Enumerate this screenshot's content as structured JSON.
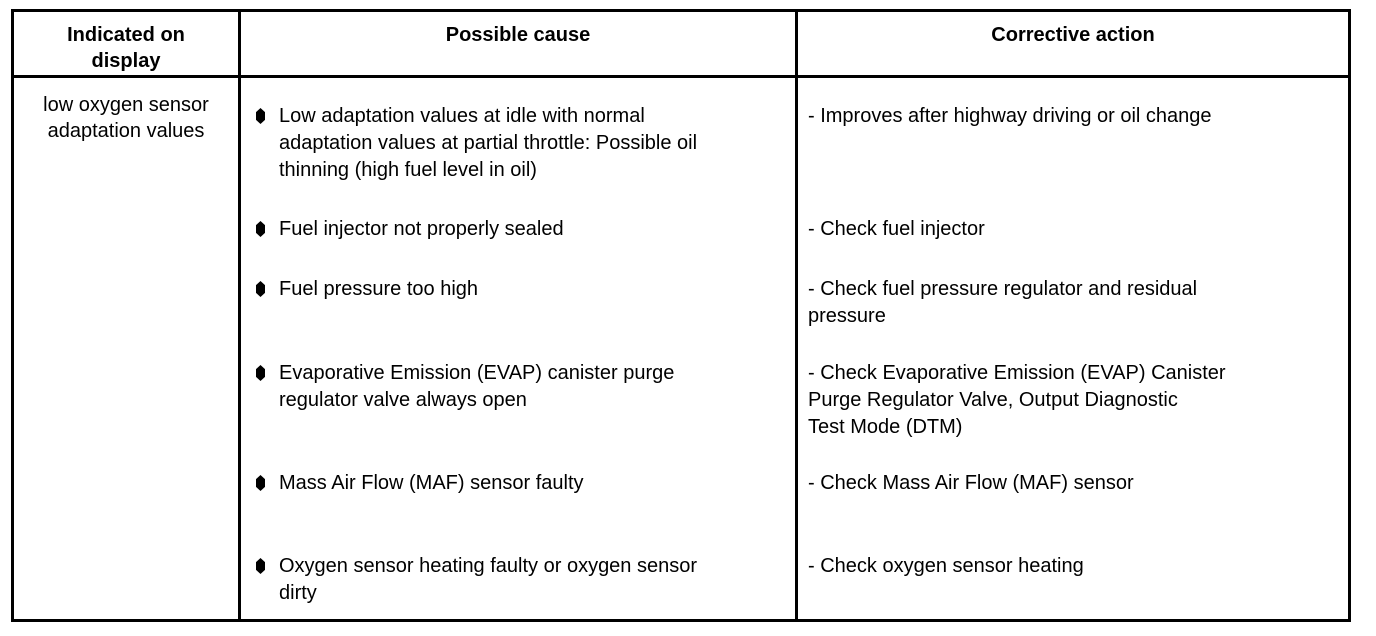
{
  "document": {
    "colors": {
      "border": "#000000",
      "text": "#000000",
      "background": "#ffffff"
    },
    "table": {
      "headers": {
        "indicated": "Indicated on\ndisplay",
        "cause": "Possible cause",
        "action": "Corrective action"
      },
      "row": {
        "indicated": "low oxygen sensor\nadaptation values",
        "items": [
          {
            "cause": "Low adaptation values at idle with normal\nadaptation values at partial throttle: Possible oil\nthinning (high fuel level in oil)",
            "action": "- Improves after highway driving or oil change"
          },
          {
            "cause": "Fuel injector not properly sealed",
            "action": "- Check fuel injector"
          },
          {
            "cause": "Fuel pressure too high",
            "action": "- Check fuel pressure regulator and residual\npressure"
          },
          {
            "cause": "Evaporative Emission (EVAP) canister purge\nregulator valve always open",
            "action": "- Check Evaporative Emission (EVAP) Canister\nPurge Regulator Valve, Output Diagnostic\nTest Mode (DTM)"
          },
          {
            "cause": "Mass Air Flow (MAF) sensor faulty",
            "action": "- Check Mass Air Flow (MAF) sensor"
          },
          {
            "cause": "Oxygen sensor heating faulty or oxygen sensor\ndirty",
            "action": "- Check oxygen sensor heating"
          }
        ]
      }
    }
  }
}
